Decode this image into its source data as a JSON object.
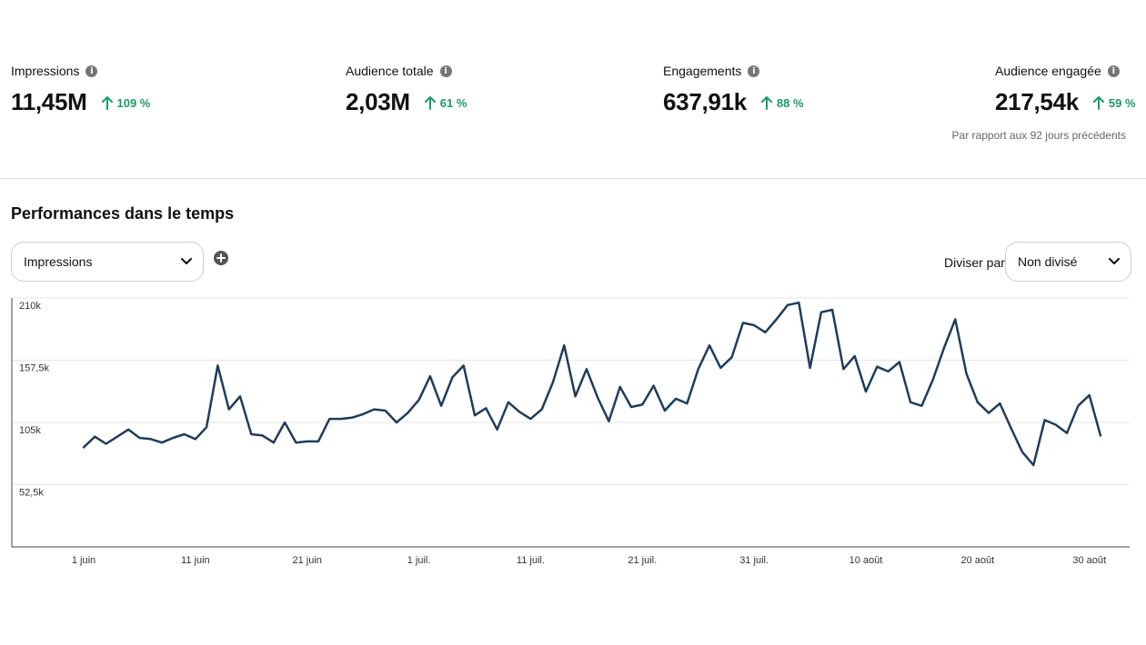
{
  "metrics": [
    {
      "label": "Impressions",
      "value": "11,45M",
      "change": "109 %"
    },
    {
      "label": "Audience totale",
      "value": "2,03M",
      "change": "61 %"
    },
    {
      "label": "Engagements",
      "value": "637,91k",
      "change": "88 %"
    },
    {
      "label": "Audience engagée",
      "value": "217,54k",
      "change": "59 %"
    }
  ],
  "comparison_note": "Par rapport aux 92 jours précédents",
  "section_title": "Performances dans le temps",
  "metric_select": {
    "value": "Impressions"
  },
  "split": {
    "label": "Diviser par",
    "value": "Non divisé"
  },
  "colors": {
    "line": "#1d3d5e",
    "positive": "#1b9b67",
    "icon": "#767676"
  },
  "icons": {
    "info": "info-icon",
    "up": "arrow-up-icon",
    "dropdown": "chevron-down-icon",
    "add": "plus-circle-icon"
  },
  "chart_data": {
    "type": "line",
    "y_ticks": [
      "210k",
      "157,5k",
      "105k",
      "52,5k"
    ],
    "y_tick_values": [
      210000,
      157500,
      105000,
      52500
    ],
    "ylim": [
      0,
      210000
    ],
    "grid": "horizontal",
    "x_ticks": [
      "1 juin",
      "11 juin",
      "21 juin",
      "1 juil.",
      "11 juil.",
      "21 juil.",
      "31 juil.",
      "10 août",
      "20 août",
      "30 août"
    ],
    "x_tick_index": [
      0,
      10,
      20,
      30,
      40,
      50,
      60,
      70,
      80,
      90
    ],
    "series": [
      {
        "values": [
          84000,
          93000,
          87000,
          93000,
          99000,
          92000,
          91000,
          88000,
          92000,
          95000,
          91000,
          101000,
          153000,
          116000,
          127000,
          95000,
          94000,
          88000,
          105000,
          88000,
          89000,
          89000,
          108000,
          108000,
          109000,
          112000,
          116000,
          115000,
          105000,
          113000,
          124000,
          144000,
          119000,
          143000,
          153000,
          111000,
          117000,
          99000,
          122000,
          114000,
          108000,
          116000,
          139000,
          170000,
          127000,
          150000,
          126000,
          106000,
          135000,
          118000,
          120000,
          136000,
          115000,
          125000,
          121000,
          150000,
          170000,
          151000,
          160000,
          189000,
          187000,
          181000,
          192000,
          204000,
          206000,
          151000,
          198000,
          200000,
          150000,
          161000,
          131000,
          152000,
          148000,
          156000,
          122000,
          119000,
          141000,
          168000,
          192000,
          146000,
          122000,
          113000,
          121000,
          100000,
          80000,
          69000,
          107000,
          103000,
          96000,
          119000,
          128000,
          94000
        ]
      }
    ]
  }
}
